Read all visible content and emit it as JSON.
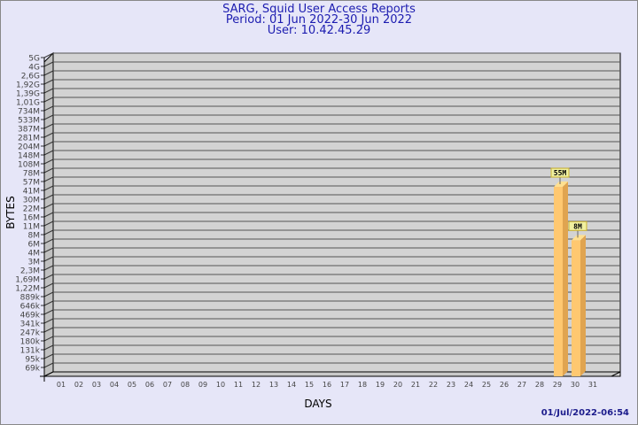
{
  "chart_data": {
    "type": "bar",
    "title": "SARG, Squid User Access Reports",
    "subtitle_period": "Period: 01 Jun 2022-30 Jun 2022",
    "subtitle_user": "User: 10.42.45.29",
    "xlabel": "DAYS",
    "ylabel": "BYTES",
    "y_scale": "log",
    "y_tick_labels": [
      "5G",
      "4G",
      "2,6G",
      "1,92G",
      "1,39G",
      "1,01G",
      "734M",
      "533M",
      "387M",
      "281M",
      "204M",
      "148M",
      "108M",
      "78M",
      "57M",
      "41M",
      "30M",
      "22M",
      "16M",
      "11M",
      "8M",
      "6M",
      "4M",
      "3M",
      "2,3M",
      "1,69M",
      "1,22M",
      "889k",
      "646k",
      "469k",
      "341k",
      "247k",
      "180k",
      "131k",
      "95k",
      "69k"
    ],
    "categories": [
      "01",
      "02",
      "03",
      "04",
      "05",
      "06",
      "07",
      "08",
      "09",
      "10",
      "11",
      "12",
      "13",
      "14",
      "15",
      "16",
      "17",
      "18",
      "19",
      "20",
      "21",
      "22",
      "23",
      "24",
      "25",
      "26",
      "27",
      "28",
      "29",
      "30",
      "31"
    ],
    "bars": [
      {
        "day": "29",
        "value": 55000000,
        "label": "55M"
      },
      {
        "day": "30",
        "value": 8000000,
        "label": "8M"
      }
    ],
    "grid": true,
    "colors": {
      "bar_front": "#ffc870",
      "bar_side": "#e0a450",
      "bar_top": "#ffe090",
      "plot": "#d3d3d3",
      "label_box": "#f0f0a0",
      "title": "#1c1cb0"
    }
  },
  "timestamp": "01/Jul/2022-06:54"
}
